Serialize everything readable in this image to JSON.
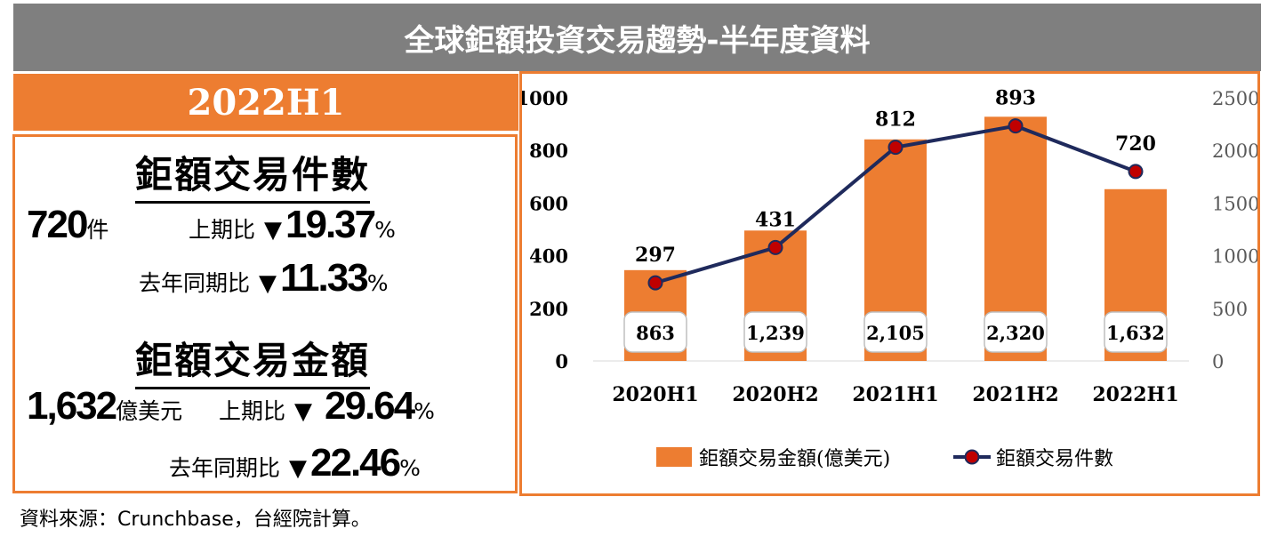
{
  "title": "全球鉅額投資交易趨勢-半年度資料",
  "period": "2022H1",
  "deals_section": {
    "heading": "鉅額交易件數",
    "value": "720",
    "unit": "件",
    "compare": [
      {
        "label": "上期比",
        "arrow": "▼",
        "value": "19.37",
        "unit": "%"
      },
      {
        "label": "去年同期比",
        "arrow": "▼",
        "value": "11.33",
        "unit": "%"
      }
    ]
  },
  "amount_section": {
    "heading": "鉅額交易金額",
    "value": "1,632",
    "unit": "億美元",
    "compare": [
      {
        "label": "上期比",
        "arrow": "▼",
        "value": "29.64",
        "unit": "%"
      },
      {
        "label": "去年同期比",
        "arrow": "▼",
        "value": "22.46",
        "unit": "%"
      }
    ]
  },
  "source": "資料來源：Crunchbase，台經院計算。",
  "chart_data": {
    "type": "bar+line",
    "categories": [
      "2020H1",
      "2020H2",
      "2021H1",
      "2021H2",
      "2022H1"
    ],
    "series": [
      {
        "name": "鉅額交易金額(億美元)",
        "type": "bar",
        "axis": "right",
        "values": [
          863,
          1239,
          2105,
          2320,
          1632
        ],
        "labels": [
          "863",
          "1,239",
          "2,105",
          "2,320",
          "1,632"
        ],
        "color": "#ed7d31"
      },
      {
        "name": "鉅額交易件數",
        "type": "line",
        "axis": "left",
        "values": [
          297,
          431,
          812,
          893,
          720
        ],
        "labels": [
          "297",
          "431",
          "812",
          "893",
          "720"
        ],
        "color": "#1f2a5c",
        "marker_color": "#c00000"
      }
    ],
    "left_axis": {
      "min": 0,
      "max": 1000,
      "ticks": [
        "0",
        "200",
        "400",
        "600",
        "800",
        "1000"
      ]
    },
    "right_axis": {
      "min": 0,
      "max": 2500,
      "ticks": [
        "0",
        "500",
        "1000",
        "1500",
        "2000",
        "2500"
      ]
    },
    "grid": false,
    "legend_position": "bottom"
  }
}
